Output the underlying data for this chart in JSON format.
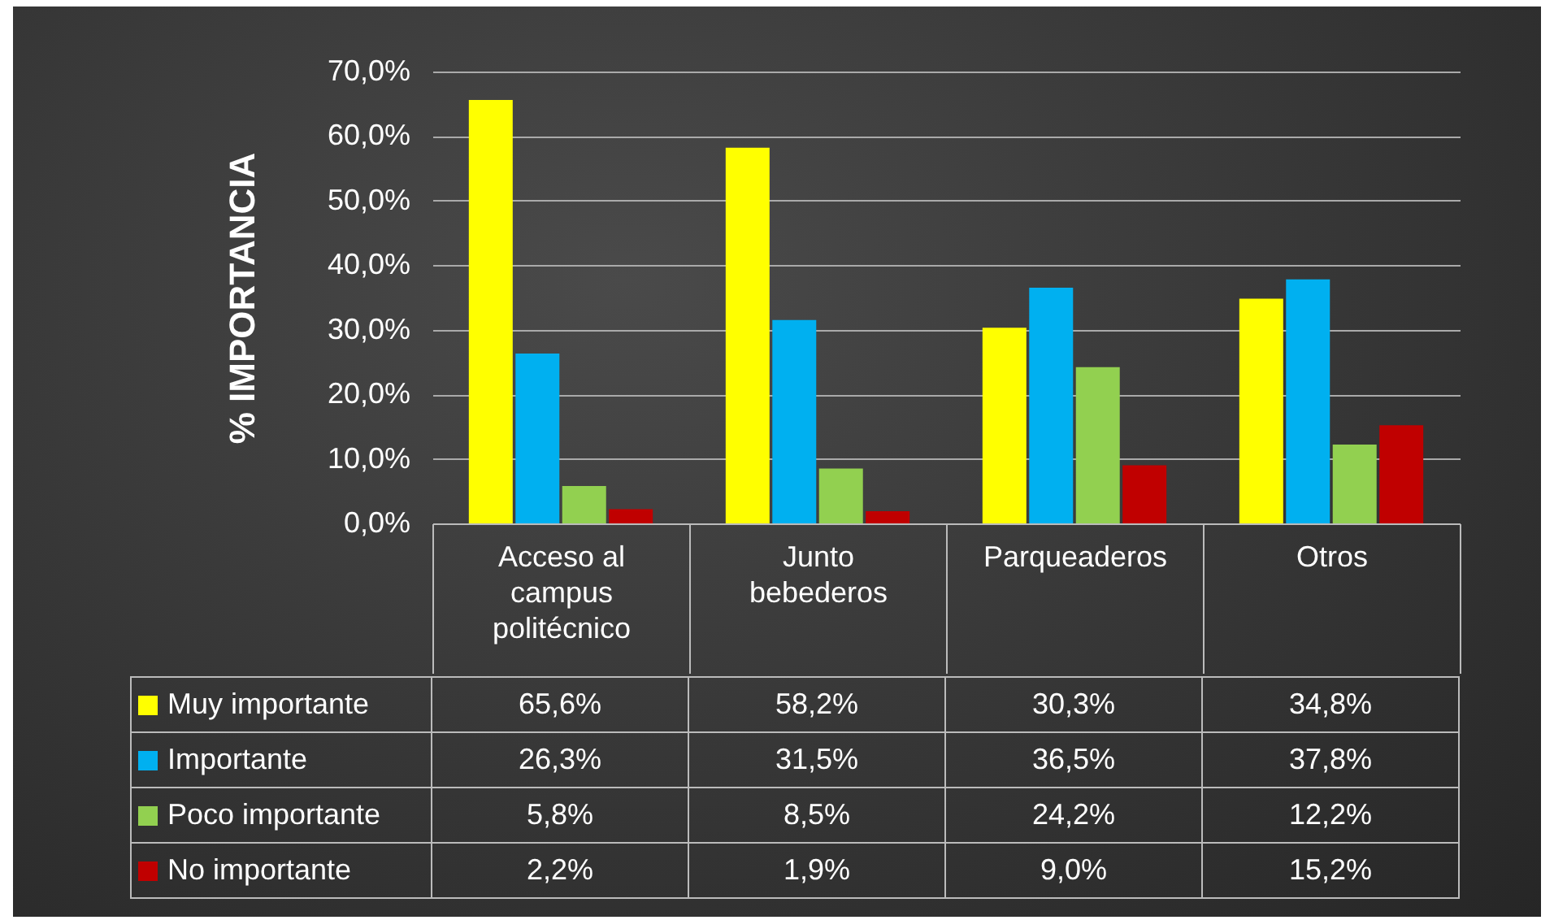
{
  "chart_data": {
    "type": "bar",
    "ylabel": "% IMPORTANCIA",
    "categories": [
      "Acceso al campus politécnico",
      "Junto bebederos",
      "Parqueaderos",
      "Otros"
    ],
    "series": [
      {
        "name": "Muy importante",
        "color": "#ffff00",
        "values": [
          65.6,
          58.2,
          30.3,
          34.8
        ],
        "value_labels": [
          "65,6%",
          "58,2%",
          "30,3%",
          "34,8%"
        ]
      },
      {
        "name": "Importante",
        "color": "#00b0f0",
        "values": [
          26.3,
          31.5,
          36.5,
          37.8
        ],
        "value_labels": [
          "26,3%",
          "31,5%",
          "36,5%",
          "37,8%"
        ]
      },
      {
        "name": "Poco importante",
        "color": "#92d050",
        "values": [
          5.8,
          8.5,
          24.2,
          12.2
        ],
        "value_labels": [
          "5,8%",
          "8,5%",
          "24,2%",
          "12,2%"
        ]
      },
      {
        "name": "No importante",
        "color": "#c00000",
        "values": [
          2.2,
          1.9,
          9.0,
          15.2
        ],
        "value_labels": [
          "2,2%",
          "1,9%",
          "9,0%",
          "15,2%"
        ]
      }
    ],
    "ylim": [
      0,
      70
    ],
    "yticks": [
      {
        "value": 0,
        "label": "0,0%"
      },
      {
        "value": 10,
        "label": "10,0%"
      },
      {
        "value": 20,
        "label": "20,0%"
      },
      {
        "value": 30,
        "label": "30,0%"
      },
      {
        "value": 40,
        "label": "40,0%"
      },
      {
        "value": 50,
        "label": "50,0%"
      },
      {
        "value": 60,
        "label": "60,0%"
      },
      {
        "value": 70,
        "label": "70,0%"
      }
    ],
    "grid": "y",
    "legend": "bottom"
  }
}
